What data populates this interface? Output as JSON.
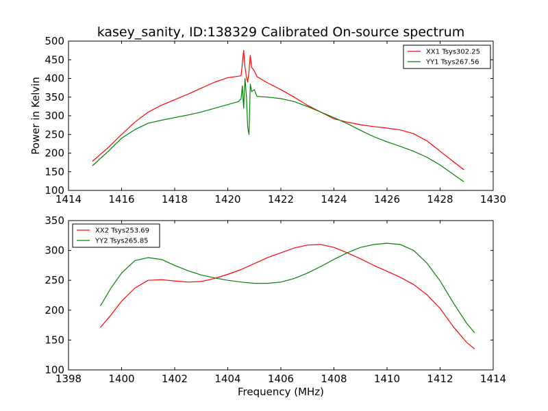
{
  "title": "kasey_sanity, ID:138329 Calibrated On-source spectrum",
  "colors": {
    "red": "#ff0000",
    "green": "#008000"
  },
  "chart_data": [
    {
      "type": "line",
      "ylabel": "Power in Kelvin",
      "xlabel": "",
      "xlim": [
        1414,
        1430
      ],
      "ylim": [
        100,
        500
      ],
      "xticks": [
        1414,
        1416,
        1418,
        1420,
        1422,
        1424,
        1426,
        1428,
        1430
      ],
      "yticks": [
        100,
        150,
        200,
        250,
        300,
        350,
        400,
        450,
        500
      ],
      "legend_position": "top-right",
      "series": [
        {
          "name": "XX1 Tsys302.25",
          "color": "#ff0000",
          "points": [
            [
              1414.9,
              178
            ],
            [
              1415.5,
              215
            ],
            [
              1416,
              250
            ],
            [
              1416.5,
              283
            ],
            [
              1417,
              310
            ],
            [
              1417.5,
              328
            ],
            [
              1418,
              343
            ],
            [
              1418.5,
              358
            ],
            [
              1419,
              374
            ],
            [
              1419.5,
              390
            ],
            [
              1420,
              402
            ],
            [
              1420.3,
              405
            ],
            [
              1420.5,
              407
            ],
            [
              1420.55,
              440
            ],
            [
              1420.6,
              475
            ],
            [
              1420.65,
              430
            ],
            [
              1420.7,
              405
            ],
            [
              1420.75,
              390
            ],
            [
              1420.8,
              420
            ],
            [
              1420.85,
              462
            ],
            [
              1420.9,
              430
            ],
            [
              1421,
              420
            ],
            [
              1421.1,
              405
            ],
            [
              1421.5,
              388
            ],
            [
              1422,
              370
            ],
            [
              1422.5,
              350
            ],
            [
              1423,
              328
            ],
            [
              1423.5,
              310
            ],
            [
              1424,
              292
            ],
            [
              1424.5,
              283
            ],
            [
              1425,
              276
            ],
            [
              1425.5,
              271
            ],
            [
              1426,
              267
            ],
            [
              1426.5,
              262
            ],
            [
              1427,
              252
            ],
            [
              1427.5,
              233
            ],
            [
              1428,
              205
            ],
            [
              1428.5,
              177
            ],
            [
              1428.9,
              155
            ]
          ]
        },
        {
          "name": "YY1 Tsys267.56",
          "color": "#008000",
          "points": [
            [
              1414.9,
              166
            ],
            [
              1415.5,
              205
            ],
            [
              1416,
              240
            ],
            [
              1416.5,
              263
            ],
            [
              1417,
              280
            ],
            [
              1417.5,
              288
            ],
            [
              1418,
              295
            ],
            [
              1418.5,
              302
            ],
            [
              1419,
              310
            ],
            [
              1419.5,
              320
            ],
            [
              1420,
              330
            ],
            [
              1420.4,
              338
            ],
            [
              1420.5,
              345
            ],
            [
              1420.55,
              380
            ],
            [
              1420.6,
              320
            ],
            [
              1420.65,
              400
            ],
            [
              1420.7,
              355
            ],
            [
              1420.75,
              270
            ],
            [
              1420.8,
              250
            ],
            [
              1420.85,
              385
            ],
            [
              1420.9,
              365
            ],
            [
              1421,
              370
            ],
            [
              1421.1,
              352
            ],
            [
              1421.5,
              350
            ],
            [
              1422,
              346
            ],
            [
              1422.5,
              338
            ],
            [
              1423,
              325
            ],
            [
              1423.5,
              310
            ],
            [
              1424,
              295
            ],
            [
              1424.5,
              279
            ],
            [
              1425,
              261
            ],
            [
              1425.5,
              244
            ],
            [
              1426,
              230
            ],
            [
              1426.5,
              218
            ],
            [
              1427,
              205
            ],
            [
              1427.5,
              189
            ],
            [
              1428,
              168
            ],
            [
              1428.5,
              143
            ],
            [
              1428.9,
              123
            ]
          ]
        }
      ]
    },
    {
      "type": "line",
      "ylabel": "",
      "xlabel": "Frequency (MHz)",
      "xlim": [
        1398,
        1414
      ],
      "ylim": [
        100,
        350
      ],
      "xticks": [
        1398,
        1400,
        1402,
        1404,
        1406,
        1408,
        1410,
        1412,
        1414
      ],
      "yticks": [
        100,
        150,
        200,
        250,
        300,
        350
      ],
      "legend_position": "top-left",
      "series": [
        {
          "name": "XX2 Tsys253.69",
          "color": "#ff0000",
          "points": [
            [
              1399.2,
              171
            ],
            [
              1399.6,
              192
            ],
            [
              1400,
              215
            ],
            [
              1400.5,
              237
            ],
            [
              1401,
              250
            ],
            [
              1401.5,
              251
            ],
            [
              1402,
              249
            ],
            [
              1402.5,
              247
            ],
            [
              1403,
              248
            ],
            [
              1403.5,
              253
            ],
            [
              1404,
              260
            ],
            [
              1404.5,
              268
            ],
            [
              1405,
              278
            ],
            [
              1405.5,
              288
            ],
            [
              1406,
              296
            ],
            [
              1406.5,
              304
            ],
            [
              1407,
              309
            ],
            [
              1407.5,
              310
            ],
            [
              1408,
              305
            ],
            [
              1408.5,
              296
            ],
            [
              1409,
              286
            ],
            [
              1409.5,
              275
            ],
            [
              1410,
              265
            ],
            [
              1410.5,
              255
            ],
            [
              1411,
              243
            ],
            [
              1411.5,
              226
            ],
            [
              1412,
              203
            ],
            [
              1412.5,
              172
            ],
            [
              1413,
              146
            ],
            [
              1413.3,
              135
            ]
          ]
        },
        {
          "name": "YY2 Tsys265.85",
          "color": "#008000",
          "points": [
            [
              1399.2,
              207
            ],
            [
              1399.6,
              237
            ],
            [
              1400,
              262
            ],
            [
              1400.5,
              283
            ],
            [
              1401,
              288
            ],
            [
              1401.5,
              285
            ],
            [
              1402,
              275
            ],
            [
              1402.5,
              266
            ],
            [
              1403,
              259
            ],
            [
              1403.5,
              254
            ],
            [
              1404,
              250
            ],
            [
              1404.5,
              247
            ],
            [
              1405,
              245
            ],
            [
              1405.5,
              245
            ],
            [
              1406,
              247
            ],
            [
              1406.5,
              253
            ],
            [
              1407,
              262
            ],
            [
              1407.5,
              273
            ],
            [
              1408,
              285
            ],
            [
              1408.5,
              296
            ],
            [
              1409,
              305
            ],
            [
              1409.5,
              310
            ],
            [
              1410,
              312
            ],
            [
              1410.5,
              310
            ],
            [
              1411,
              300
            ],
            [
              1411.5,
              279
            ],
            [
              1412,
              249
            ],
            [
              1412.5,
              212
            ],
            [
              1413,
              178
            ],
            [
              1413.3,
              162
            ]
          ]
        }
      ]
    }
  ]
}
